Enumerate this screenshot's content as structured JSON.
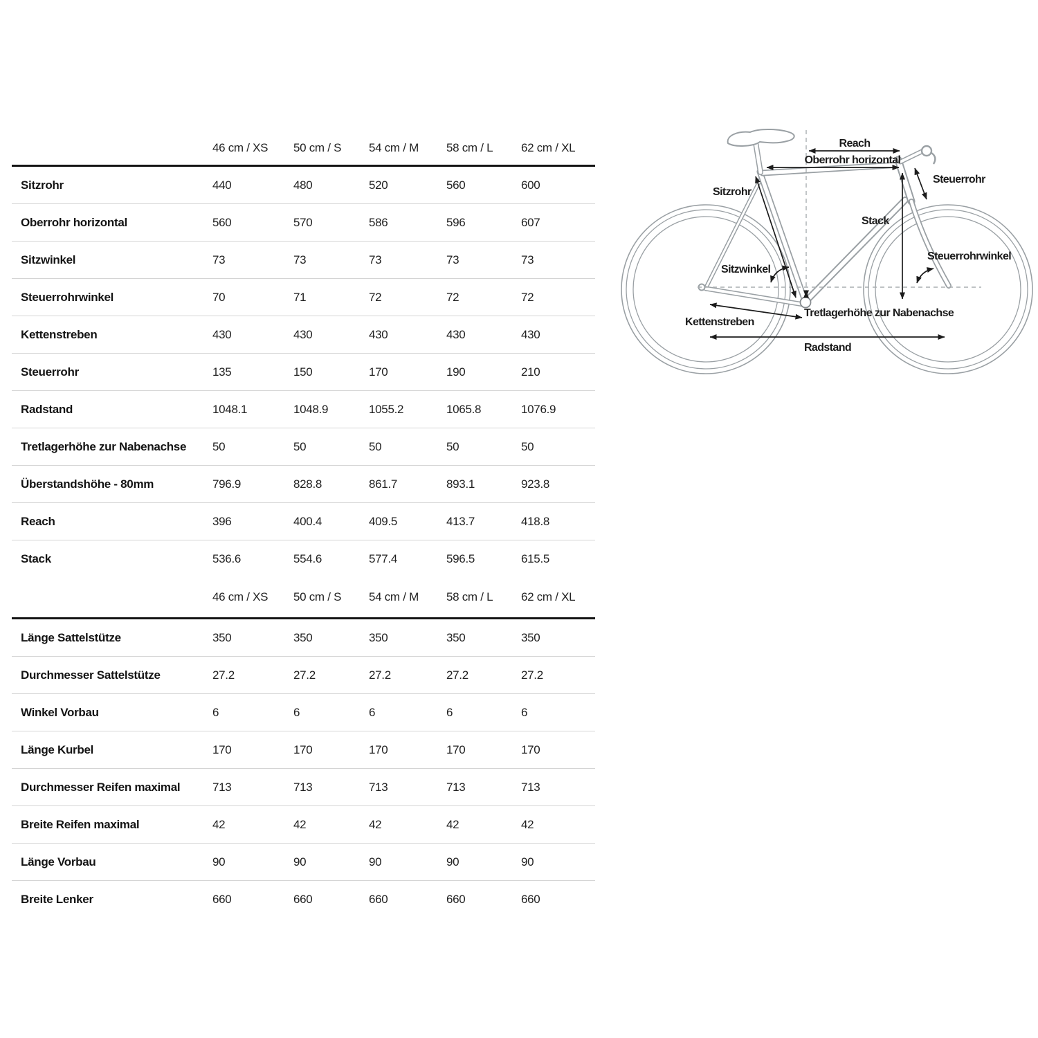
{
  "table": {
    "size_headers": [
      "46 cm / XS",
      "50 cm / S",
      "54 cm / M",
      "58 cm / L",
      "62 cm / XL"
    ],
    "sections": [
      {
        "rows": [
          {
            "label": "Sitzrohr",
            "values": [
              "440",
              "480",
              "520",
              "560",
              "600"
            ]
          },
          {
            "label": "Oberrohr horizontal",
            "values": [
              "560",
              "570",
              "586",
              "596",
              "607"
            ]
          },
          {
            "label": "Sitzwinkel",
            "values": [
              "73",
              "73",
              "73",
              "73",
              "73"
            ]
          },
          {
            "label": "Steuerrohrwinkel",
            "values": [
              "70",
              "71",
              "72",
              "72",
              "72"
            ]
          },
          {
            "label": "Kettenstreben",
            "values": [
              "430",
              "430",
              "430",
              "430",
              "430"
            ]
          },
          {
            "label": "Steuerrohr",
            "values": [
              "135",
              "150",
              "170",
              "190",
              "210"
            ]
          },
          {
            "label": "Radstand",
            "values": [
              "1048.1",
              "1048.9",
              "1055.2",
              "1065.8",
              "1076.9"
            ]
          },
          {
            "label": "Tretlagerhöhe zur Nabenachse",
            "values": [
              "50",
              "50",
              "50",
              "50",
              "50"
            ]
          },
          {
            "label": "Überstandshöhe - 80mm",
            "values": [
              "796.9",
              "828.8",
              "861.7",
              "893.1",
              "923.8"
            ]
          },
          {
            "label": "Reach",
            "values": [
              "396",
              "400.4",
              "409.5",
              "413.7",
              "418.8"
            ]
          },
          {
            "label": "Stack",
            "values": [
              "536.6",
              "554.6",
              "577.4",
              "596.5",
              "615.5"
            ]
          }
        ]
      },
      {
        "rows": [
          {
            "label": "Länge Sattelstütze",
            "values": [
              "350",
              "350",
              "350",
              "350",
              "350"
            ]
          },
          {
            "label": "Durchmesser Sattelstütze",
            "values": [
              "27.2",
              "27.2",
              "27.2",
              "27.2",
              "27.2"
            ]
          },
          {
            "label": "Winkel Vorbau",
            "values": [
              "6",
              "6",
              "6",
              "6",
              "6"
            ]
          },
          {
            "label": "Länge Kurbel",
            "values": [
              "170",
              "170",
              "170",
              "170",
              "170"
            ]
          },
          {
            "label": "Durchmesser Reifen maximal",
            "values": [
              "713",
              "713",
              "713",
              "713",
              "713"
            ]
          },
          {
            "label": "Breite Reifen maximal",
            "values": [
              "42",
              "42",
              "42",
              "42",
              "42"
            ]
          },
          {
            "label": "Länge Vorbau",
            "values": [
              "90",
              "90",
              "90",
              "90",
              "90"
            ]
          },
          {
            "label": "Breite Lenker",
            "values": [
              "660",
              "660",
              "660",
              "660",
              "660"
            ]
          }
        ]
      }
    ]
  },
  "diagram": {
    "labels": {
      "reach": "Reach",
      "top_tube": "Oberrohr horizontal",
      "head_tube": "Steuerrohr",
      "seat_tube": "Sitzrohr",
      "stack": "Stack",
      "head_angle": "Steuerrohrwinkel",
      "seat_angle": "Sitzwinkel",
      "bb_height": "Tretlagerhöhe zur Nabenachse",
      "chainstay": "Kettenstreben",
      "wheelbase": "Radstand"
    },
    "colors": {
      "outline": "#9aa0a4",
      "arrow": "#1c1c1c"
    }
  }
}
